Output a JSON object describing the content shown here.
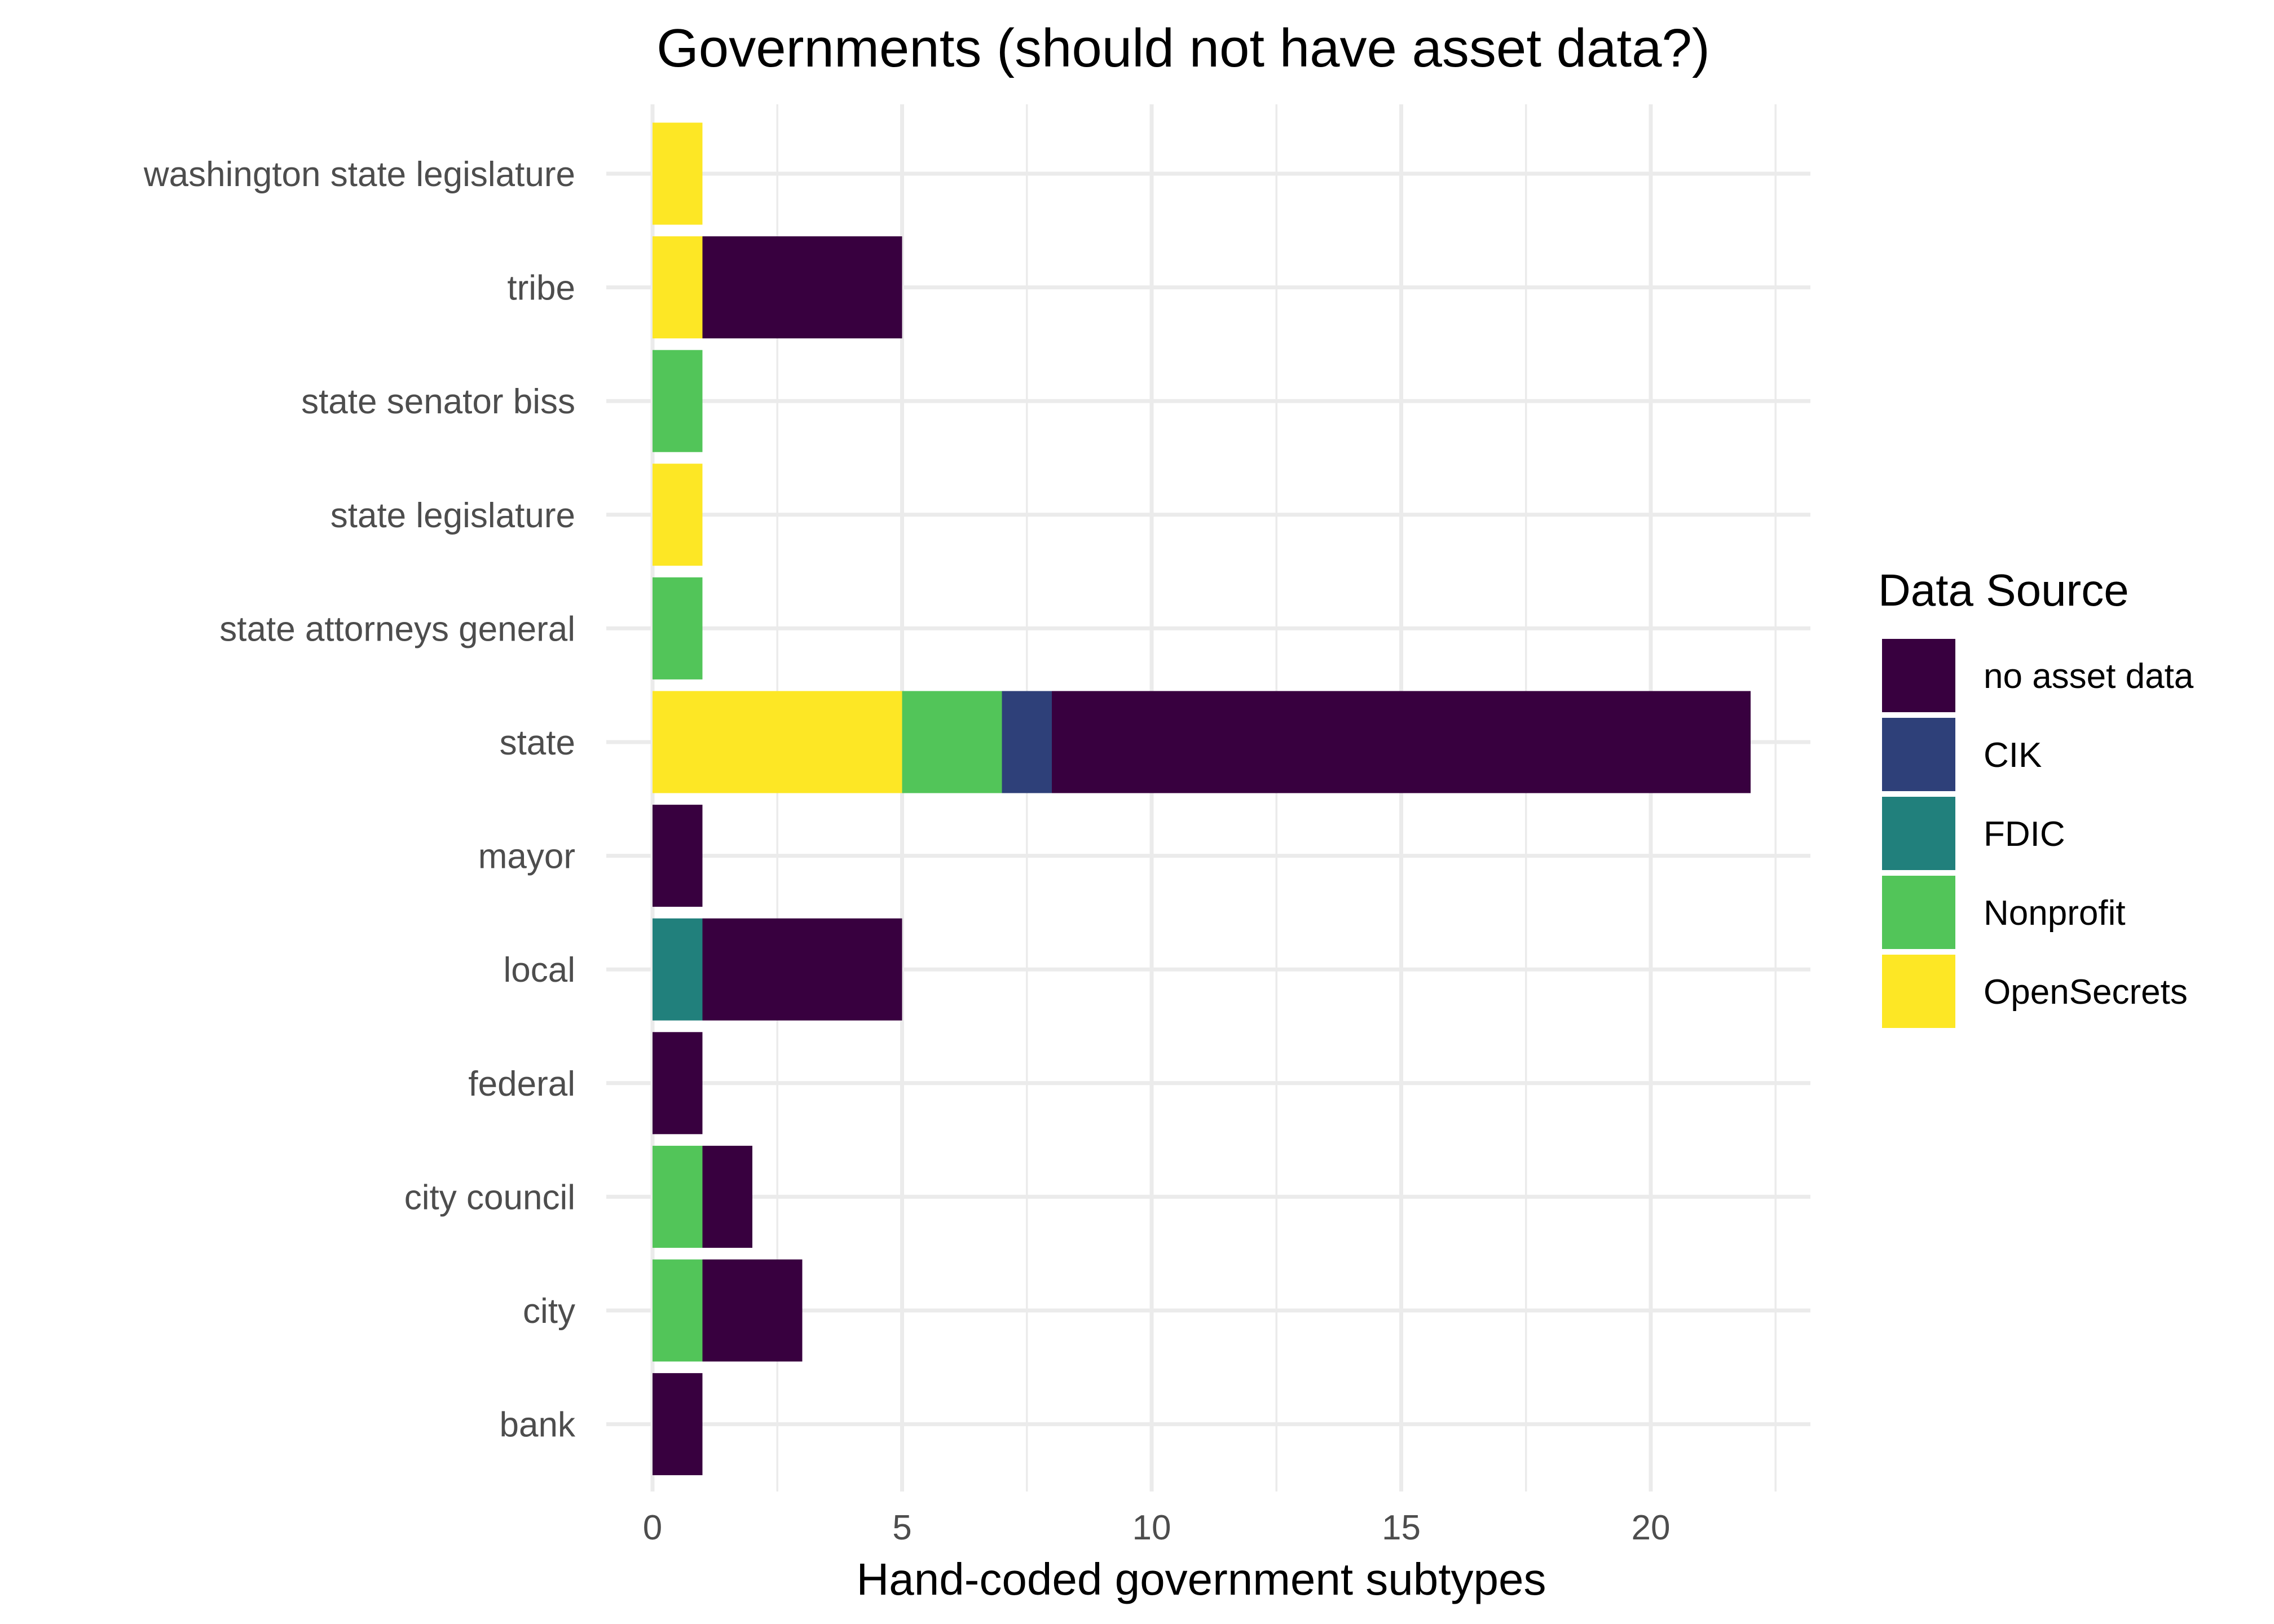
{
  "chart_data": {
    "type": "bar",
    "orientation": "horizontal",
    "stacked": true,
    "title": "Governments (should not have asset data?)",
    "xlabel": "Hand-coded government subtypes",
    "ylabel": "",
    "xlim": [
      -1.1,
      23.1
    ],
    "x_ticks": [
      0,
      5,
      10,
      15,
      20
    ],
    "x_tick_labels": [
      "0",
      "5",
      "10",
      "15",
      "20"
    ],
    "grid": true,
    "categories": [
      "washington state legislature",
      "tribe",
      "state senator biss",
      "state legislature",
      "state attorneys general",
      "state",
      "mayor",
      "local",
      "federal",
      "city council",
      "city",
      "bank"
    ],
    "series": [
      {
        "name": "OpenSecrets",
        "color": "#FDE725",
        "values": [
          1,
          1,
          0,
          1,
          0,
          5,
          0,
          0,
          0,
          0,
          0,
          0
        ]
      },
      {
        "name": "Nonprofit",
        "color": "#52C559",
        "values": [
          0,
          0,
          1,
          0,
          1,
          2,
          0,
          0,
          0,
          1,
          1,
          0
        ]
      },
      {
        "name": "FDIC",
        "color": "#21807C",
        "values": [
          0,
          0,
          0,
          0,
          0,
          0,
          0,
          1,
          0,
          0,
          0,
          0
        ]
      },
      {
        "name": "CIK",
        "color": "#2E4079",
        "values": [
          0,
          0,
          0,
          0,
          0,
          1,
          0,
          0,
          0,
          0,
          0,
          0
        ]
      },
      {
        "name": " no asset data",
        "color": "#38003F",
        "values": [
          0,
          4,
          0,
          0,
          0,
          14,
          1,
          4,
          1,
          1,
          2,
          1
        ]
      }
    ],
    "legend": {
      "title": "Data Source",
      "position": "right",
      "entries": [
        {
          "label": " no asset data",
          "color": "#38003F"
        },
        {
          "label": "CIK",
          "color": "#2E4079"
        },
        {
          "label": "FDIC",
          "color": "#21807C"
        },
        {
          "label": "Nonprofit",
          "color": "#52C559"
        },
        {
          "label": "OpenSecrets",
          "color": "#FDE725"
        }
      ]
    }
  }
}
